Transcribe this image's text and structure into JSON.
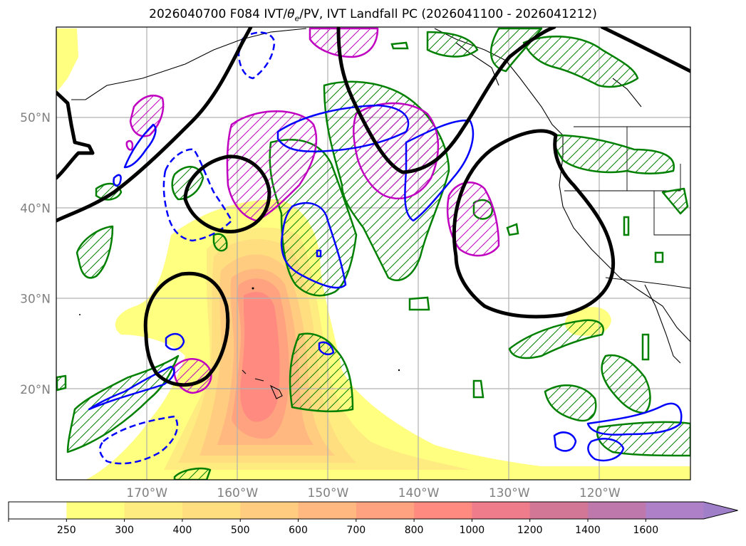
{
  "title": {
    "prefix": "2026040700 F084 IVT/",
    "theta": "θ",
    "theta_sub": "e",
    "suffix": "/PV, IVT Landfall PC (2026041100 - 2026041212)"
  },
  "map": {
    "projection": "PlateCarree",
    "lon_range": [
      -180,
      -110
    ],
    "lat_range": [
      10,
      60
    ],
    "gridlines": true,
    "lat_ticks": [
      {
        "label": "50°N",
        "lat": 50
      },
      {
        "label": "40°N",
        "lat": 40
      },
      {
        "label": "30°N",
        "lat": 30
      },
      {
        "label": "20°N",
        "lat": 20
      }
    ],
    "lon_ticks": [
      {
        "label": "170°W",
        "lon": -170
      },
      {
        "label": "160°W",
        "lon": -160
      },
      {
        "label": "150°W",
        "lon": -150
      },
      {
        "label": "140°W",
        "lon": -140
      },
      {
        "label": "130°W",
        "lon": -130
      },
      {
        "label": "120°W",
        "lon": -120
      }
    ],
    "layers": {
      "ivt_fill": "filled contours of IVT (yellow to red)",
      "theta_e": "black contours",
      "pv": "blue contours (dashed = negative)",
      "landfall_pc": "green and magenta hatched contours"
    }
  },
  "colorbar": {
    "extend": "max",
    "levels": [
      {
        "label": "250",
        "color": "#ffffff"
      },
      {
        "label": "300",
        "color": "#ffff80"
      },
      {
        "label": "400",
        "color": "#ffec80"
      },
      {
        "label": "500",
        "color": "#ffde80"
      },
      {
        "label": "600",
        "color": "#ffcc80"
      },
      {
        "label": "700",
        "color": "#ffb880"
      },
      {
        "label": "800",
        "color": "#ffa280"
      },
      {
        "label": "1000",
        "color": "#ff8b80"
      },
      {
        "label": "1200",
        "color": "#ee7c8a"
      },
      {
        "label": "1400",
        "color": "#d37797"
      },
      {
        "label": "1600",
        "color": "#bf78ab"
      },
      {
        "label": "",
        "color": "#ad80c8"
      }
    ],
    "extend_color": "#9e7fc8"
  },
  "colors": {
    "theta_e": "#000000",
    "pv": "#0000ff",
    "pc_positive": "#008000",
    "pc_negative": "#c000c0",
    "grid": "#b0b0b0",
    "tick_labels": "#808080"
  }
}
